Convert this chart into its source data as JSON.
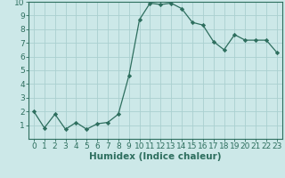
{
  "x": [
    0,
    1,
    2,
    3,
    4,
    5,
    6,
    7,
    8,
    9,
    10,
    11,
    12,
    13,
    14,
    15,
    16,
    17,
    18,
    19,
    20,
    21,
    22,
    23
  ],
  "y": [
    2.0,
    0.8,
    1.8,
    0.7,
    1.2,
    0.7,
    1.1,
    1.2,
    1.8,
    4.6,
    8.7,
    9.9,
    9.8,
    9.9,
    9.5,
    8.5,
    8.3,
    7.1,
    6.5,
    7.6,
    7.2,
    7.2,
    7.2,
    6.3
  ],
  "xlabel": "Humidex (Indice chaleur)",
  "ylim": [
    0,
    10
  ],
  "xlim_min": -0.5,
  "xlim_max": 23.5,
  "line_color": "#2d6e5e",
  "marker": "D",
  "marker_size": 2.2,
  "bg_color": "#cce8e8",
  "grid_color": "#aad0d0",
  "tick_color": "#2d6e5e",
  "label_color": "#2d6e5e",
  "xlabel_fontsize": 7.5,
  "tick_fontsize": 6.5,
  "yticks": [
    1,
    2,
    3,
    4,
    5,
    6,
    7,
    8,
    9,
    10
  ],
  "xticks": [
    0,
    1,
    2,
    3,
    4,
    5,
    6,
    7,
    8,
    9,
    10,
    11,
    12,
    13,
    14,
    15,
    16,
    17,
    18,
    19,
    20,
    21,
    22,
    23
  ]
}
